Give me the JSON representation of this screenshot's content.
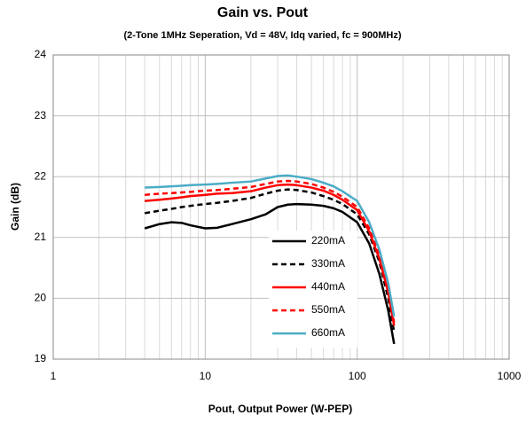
{
  "chart_data": {
    "type": "line",
    "title": "Gain vs. Pout",
    "subtitle": "(2-Tone 1MHz Seperation, Vd = 48V, Idq varied, fc = 900MHz)",
    "xlabel": "Pout, Output Power (W-PEP)",
    "ylabel": "Gain (dB)",
    "xscale": "log",
    "xlim": [
      1,
      1000
    ],
    "xticks": [
      1,
      10,
      100,
      1000
    ],
    "ylim": [
      19,
      24
    ],
    "yticks": [
      19,
      20,
      21,
      22,
      23,
      24
    ],
    "grid": true,
    "minor_grid": true,
    "legend": "center",
    "x": [
      4,
      5,
      6,
      7,
      8,
      10,
      12,
      15,
      20,
      25,
      30,
      35,
      40,
      50,
      60,
      70,
      80,
      100,
      120,
      140,
      160,
      175
    ],
    "series": [
      {
        "name": "220mA",
        "color": "#000000",
        "dash": false,
        "values": [
          21.15,
          21.22,
          21.25,
          21.24,
          21.2,
          21.15,
          21.16,
          21.22,
          21.3,
          21.38,
          21.5,
          21.54,
          21.55,
          21.54,
          21.52,
          21.48,
          21.42,
          21.25,
          20.9,
          20.4,
          19.8,
          19.25
        ]
      },
      {
        "name": "330mA",
        "color": "#000000",
        "dash": true,
        "values": [
          21.4,
          21.44,
          21.47,
          21.5,
          21.52,
          21.55,
          21.57,
          21.6,
          21.65,
          21.72,
          21.77,
          21.79,
          21.78,
          21.74,
          21.68,
          21.62,
          21.55,
          21.38,
          21.05,
          20.6,
          20.0,
          19.45
        ]
      },
      {
        "name": "440mA",
        "color": "#ff0000",
        "dash": false,
        "values": [
          21.6,
          21.62,
          21.64,
          21.66,
          21.68,
          21.7,
          21.72,
          21.73,
          21.76,
          21.82,
          21.86,
          21.87,
          21.86,
          21.82,
          21.77,
          21.7,
          21.62,
          21.45,
          21.1,
          20.65,
          20.1,
          19.55
        ]
      },
      {
        "name": "550mA",
        "color": "#ff0000",
        "dash": true,
        "values": [
          21.7,
          21.72,
          21.73,
          21.74,
          21.75,
          21.77,
          21.78,
          21.8,
          21.83,
          21.88,
          21.92,
          21.93,
          21.92,
          21.88,
          21.82,
          21.75,
          21.67,
          21.5,
          21.15,
          20.7,
          20.15,
          19.6
        ]
      },
      {
        "name": "660mA",
        "color": "#4bacc6",
        "dash": false,
        "values": [
          21.82,
          21.83,
          21.84,
          21.85,
          21.86,
          21.87,
          21.88,
          21.9,
          21.92,
          21.97,
          22.01,
          22.02,
          22.0,
          21.96,
          21.9,
          21.84,
          21.76,
          21.6,
          21.25,
          20.8,
          20.25,
          19.7
        ]
      }
    ]
  }
}
